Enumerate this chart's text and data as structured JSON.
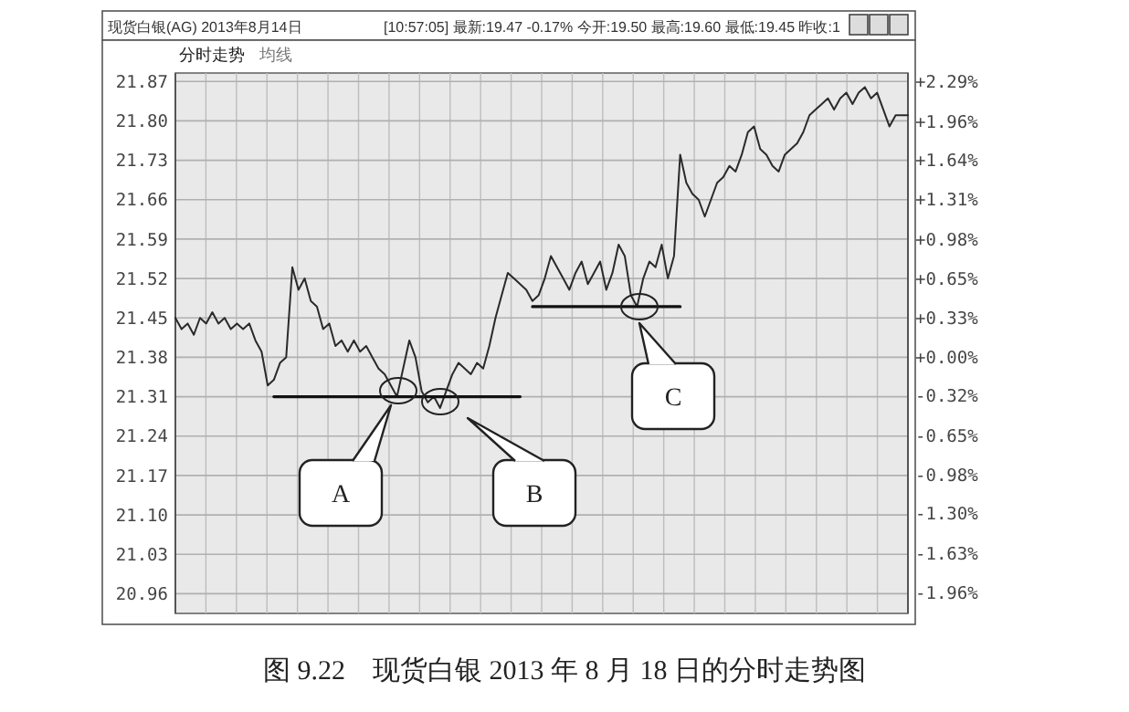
{
  "chart_data": {
    "type": "line",
    "title": "图 9.22　现货白银 2013 年 8 月 18 日的分时走势图",
    "annotations": [
      "现货白银(AG) 2013年8月14日",
      "[10:57:05] 最新:19.47 -0.17% 今开:19.50 最高:19.60 最低:19.45 昨收:1",
      "分时走势",
      "均线",
      "A",
      "B",
      "C"
    ],
    "categories": [
      null,
      null,
      null,
      null,
      null,
      null,
      null,
      null,
      null,
      null,
      null,
      null,
      null,
      null,
      null,
      null,
      null,
      null,
      null,
      null,
      null,
      null,
      null,
      null,
      null,
      null,
      null,
      null,
      null,
      null,
      null,
      null,
      null,
      null,
      null,
      null,
      null,
      null,
      null,
      null,
      null,
      null,
      null,
      null,
      null,
      null,
      null,
      null,
      null,
      null,
      null,
      null,
      null,
      null,
      null,
      null,
      null,
      null,
      null,
      null,
      null,
      null,
      null,
      null,
      null,
      null,
      null,
      null,
      null,
      null,
      null,
      null,
      null,
      null,
      null,
      null,
      null,
      null,
      null,
      null,
      null,
      null,
      null,
      null,
      null,
      null,
      null,
      null,
      null,
      null,
      null,
      null,
      null,
      null,
      null,
      null,
      null,
      null,
      null,
      null,
      null,
      null,
      null,
      null,
      null,
      null,
      null,
      null,
      null,
      null,
      null,
      null,
      null,
      null,
      null,
      null,
      null,
      null,
      null,
      null
    ],
    "series": [
      {
        "color": "#2a2a2a",
        "values": [
          21.45,
          21.43,
          21.44,
          21.42,
          21.45,
          21.44,
          21.46,
          21.44,
          21.45,
          21.43,
          21.44,
          21.43,
          21.44,
          21.41,
          21.39,
          21.33,
          21.34,
          21.37,
          21.38,
          21.54,
          21.5,
          21.52,
          21.48,
          21.47,
          21.43,
          21.44,
          21.4,
          21.41,
          21.39,
          21.41,
          21.39,
          21.4,
          21.38,
          21.36,
          21.35,
          21.33,
          21.31,
          21.36,
          21.41,
          21.38,
          21.32,
          21.3,
          21.31,
          21.29,
          21.32,
          21.35,
          21.37,
          21.36,
          21.35,
          21.37,
          21.36,
          21.4,
          21.45,
          21.49,
          21.53,
          21.52,
          21.51,
          21.5,
          21.48,
          21.49,
          21.52,
          21.56,
          21.54,
          21.52,
          21.5,
          21.53,
          21.55,
          21.51,
          21.53,
          21.55,
          21.5,
          21.53,
          21.58,
          21.56,
          21.49,
          21.47,
          21.52,
          21.55,
          21.54,
          21.58,
          21.52,
          21.56,
          21.74,
          21.69,
          21.67,
          21.66,
          21.63,
          21.66,
          21.69,
          21.7,
          21.72,
          21.71,
          21.74,
          21.78,
          21.79,
          21.75,
          21.74,
          21.72,
          21.71,
          21.74,
          21.75,
          21.76,
          21.78,
          21.81,
          21.82,
          21.83,
          21.84,
          21.82,
          21.84,
          21.85,
          21.83,
          21.85,
          21.86,
          21.84,
          21.85,
          21.82,
          21.79,
          21.81,
          21.81,
          21.81
        ]
      },
      {
        "color": "#111111",
        "values": [
          null,
          null,
          null,
          null,
          null,
          null,
          null,
          null,
          null,
          null,
          null,
          null,
          null,
          null,
          null,
          null,
          21.31,
          21.31,
          21.31,
          21.31,
          21.31,
          21.31,
          21.31,
          21.31,
          21.31,
          21.31,
          21.31,
          21.31,
          21.31,
          21.31,
          21.31,
          21.31,
          21.31,
          21.31,
          21.31,
          21.31,
          21.31,
          21.31,
          21.31,
          21.31,
          21.31,
          21.31,
          21.31,
          21.31,
          21.31,
          21.31,
          21.31,
          21.31,
          21.31,
          21.31,
          21.31,
          21.31,
          21.31,
          21.31,
          21.31,
          21.31,
          21.31,
          null,
          null,
          null,
          null,
          null,
          null,
          null,
          null,
          null,
          null,
          null,
          null,
          null,
          null,
          null,
          null,
          null,
          null,
          null,
          null,
          null,
          null,
          null,
          null,
          null,
          null,
          null,
          null,
          null,
          null,
          null,
          null,
          null,
          null,
          null,
          null,
          null,
          null,
          null,
          null,
          null,
          null,
          null,
          null,
          null,
          null,
          null,
          null,
          null,
          null,
          null,
          null,
          null,
          null,
          null,
          null,
          null,
          null,
          null,
          null,
          null,
          null,
          null
        ]
      },
      {
        "color": "#111111",
        "values": [
          null,
          null,
          null,
          null,
          null,
          null,
          null,
          null,
          null,
          null,
          null,
          null,
          null,
          null,
          null,
          null,
          null,
          null,
          null,
          null,
          null,
          null,
          null,
          null,
          null,
          null,
          null,
          null,
          null,
          null,
          null,
          null,
          null,
          null,
          null,
          null,
          null,
          null,
          null,
          null,
          null,
          null,
          null,
          null,
          null,
          null,
          null,
          null,
          null,
          null,
          null,
          null,
          null,
          null,
          null,
          null,
          null,
          null,
          21.47,
          21.47,
          21.47,
          21.47,
          21.47,
          21.47,
          21.47,
          21.47,
          21.47,
          21.47,
          21.47,
          21.47,
          21.47,
          21.47,
          21.47,
          21.47,
          21.47,
          21.47,
          21.47,
          21.47,
          21.47,
          21.47,
          21.47,
          21.47,
          21.47,
          null,
          null,
          null,
          null,
          null,
          null,
          null,
          null,
          null,
          null,
          null,
          null,
          null,
          null,
          null,
          null,
          null,
          null,
          null,
          null,
          null,
          null,
          null,
          null,
          null,
          null,
          null,
          null,
          null,
          null,
          null,
          null,
          null,
          null,
          null,
          null,
          null
        ]
      }
    ],
    "ylim": [
      20.925,
      21.885
    ],
    "yticks": [
      {
        "value": 20.96,
        "label": "20.96"
      },
      {
        "value": 21.03,
        "label": "21.03"
      },
      {
        "value": 21.1,
        "label": "21.10"
      },
      {
        "value": 21.17,
        "label": "21.17"
      },
      {
        "value": 21.24,
        "label": "21.24"
      },
      {
        "value": 21.31,
        "label": "21.31"
      },
      {
        "value": 21.38,
        "label": "21.38"
      },
      {
        "value": 21.45,
        "label": "21.45"
      },
      {
        "value": 21.52,
        "label": "21.52"
      },
      {
        "value": 21.59,
        "label": "21.59"
      },
      {
        "value": 21.66,
        "label": "21.66"
      },
      {
        "value": 21.73,
        "label": "21.73"
      },
      {
        "value": 21.8,
        "label": "21.80"
      },
      {
        "value": 21.87,
        "label": "21.87"
      }
    ],
    "y2lim": [
      -2.128,
      2.362
    ],
    "y2ticks": [
      {
        "value": -1.96,
        "label": "-1.96%"
      },
      {
        "value": -1.63,
        "label": "-1.63%"
      },
      {
        "value": -1.3,
        "label": "-1.30%"
      },
      {
        "value": -0.98,
        "label": "-0.98%"
      },
      {
        "value": -0.65,
        "label": "-0.65%"
      },
      {
        "value": -0.32,
        "label": "-0.32%"
      },
      {
        "value": 0,
        "label": "+0.00%"
      },
      {
        "value": 0.33,
        "label": "+0.33%"
      },
      {
        "value": 0.65,
        "label": "+0.65%"
      },
      {
        "value": 0.98,
        "label": "+0.98%"
      },
      {
        "value": 1.31,
        "label": "+1.31%"
      },
      {
        "value": 1.64,
        "label": "+1.64%"
      },
      {
        "value": 1.96,
        "label": "+1.96%"
      },
      {
        "value": 2.29,
        "label": "+2.29%"
      }
    ],
    "grid": true,
    "marker": "none",
    "line_style": "solid"
  }
}
